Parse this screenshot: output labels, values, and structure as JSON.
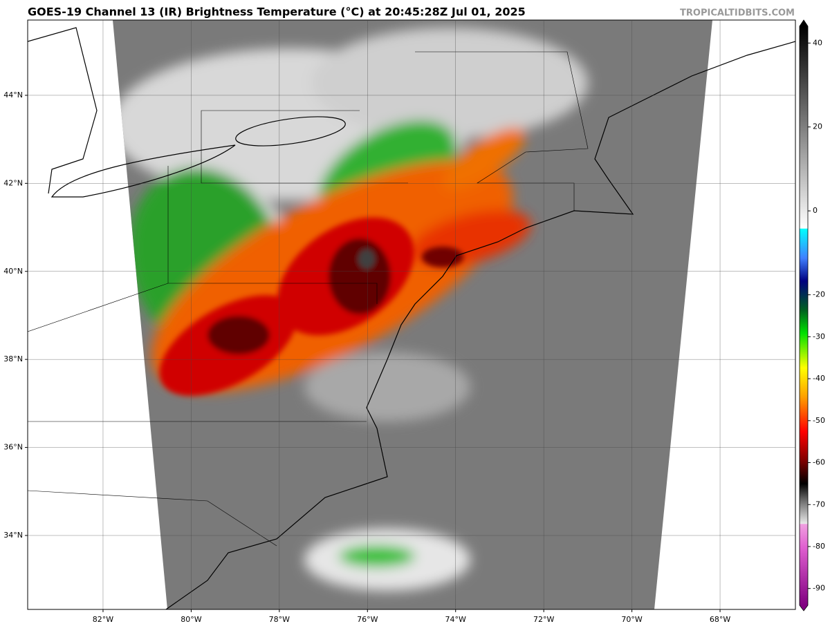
{
  "header": {
    "title": "GOES-19 Channel 13 (IR) Brightness Temperature (°C) at 20:45:28Z Jul 01, 2025",
    "watermark": "TROPICALTIDBITS.COM"
  },
  "map": {
    "xlim": [
      -83.71,
      -66.29
    ],
    "ylim": [
      32.32,
      45.71
    ],
    "lon_ticks": [
      {
        "value": -82,
        "label": "82°W"
      },
      {
        "value": -80,
        "label": "80°W"
      },
      {
        "value": -78,
        "label": "78°W"
      },
      {
        "value": -76,
        "label": "76°W"
      },
      {
        "value": -74,
        "label": "74°W"
      },
      {
        "value": -72,
        "label": "72°W"
      },
      {
        "value": -70,
        "label": "70°W"
      },
      {
        "value": -68,
        "label": "68°W"
      }
    ],
    "lat_ticks": [
      {
        "value": 44,
        "label": "44°N"
      },
      {
        "value": 42,
        "label": "42°N"
      },
      {
        "value": 40,
        "label": "40°N"
      },
      {
        "value": 38,
        "label": "38°N"
      },
      {
        "value": 36,
        "label": "36°N"
      },
      {
        "value": 34,
        "label": "34°N"
      }
    ]
  },
  "colorbar": {
    "lim": [
      -94,
      44
    ],
    "ticks": [
      40,
      20,
      0,
      -20,
      -30,
      -40,
      -50,
      -60,
      -70,
      -80,
      -90
    ]
  }
}
